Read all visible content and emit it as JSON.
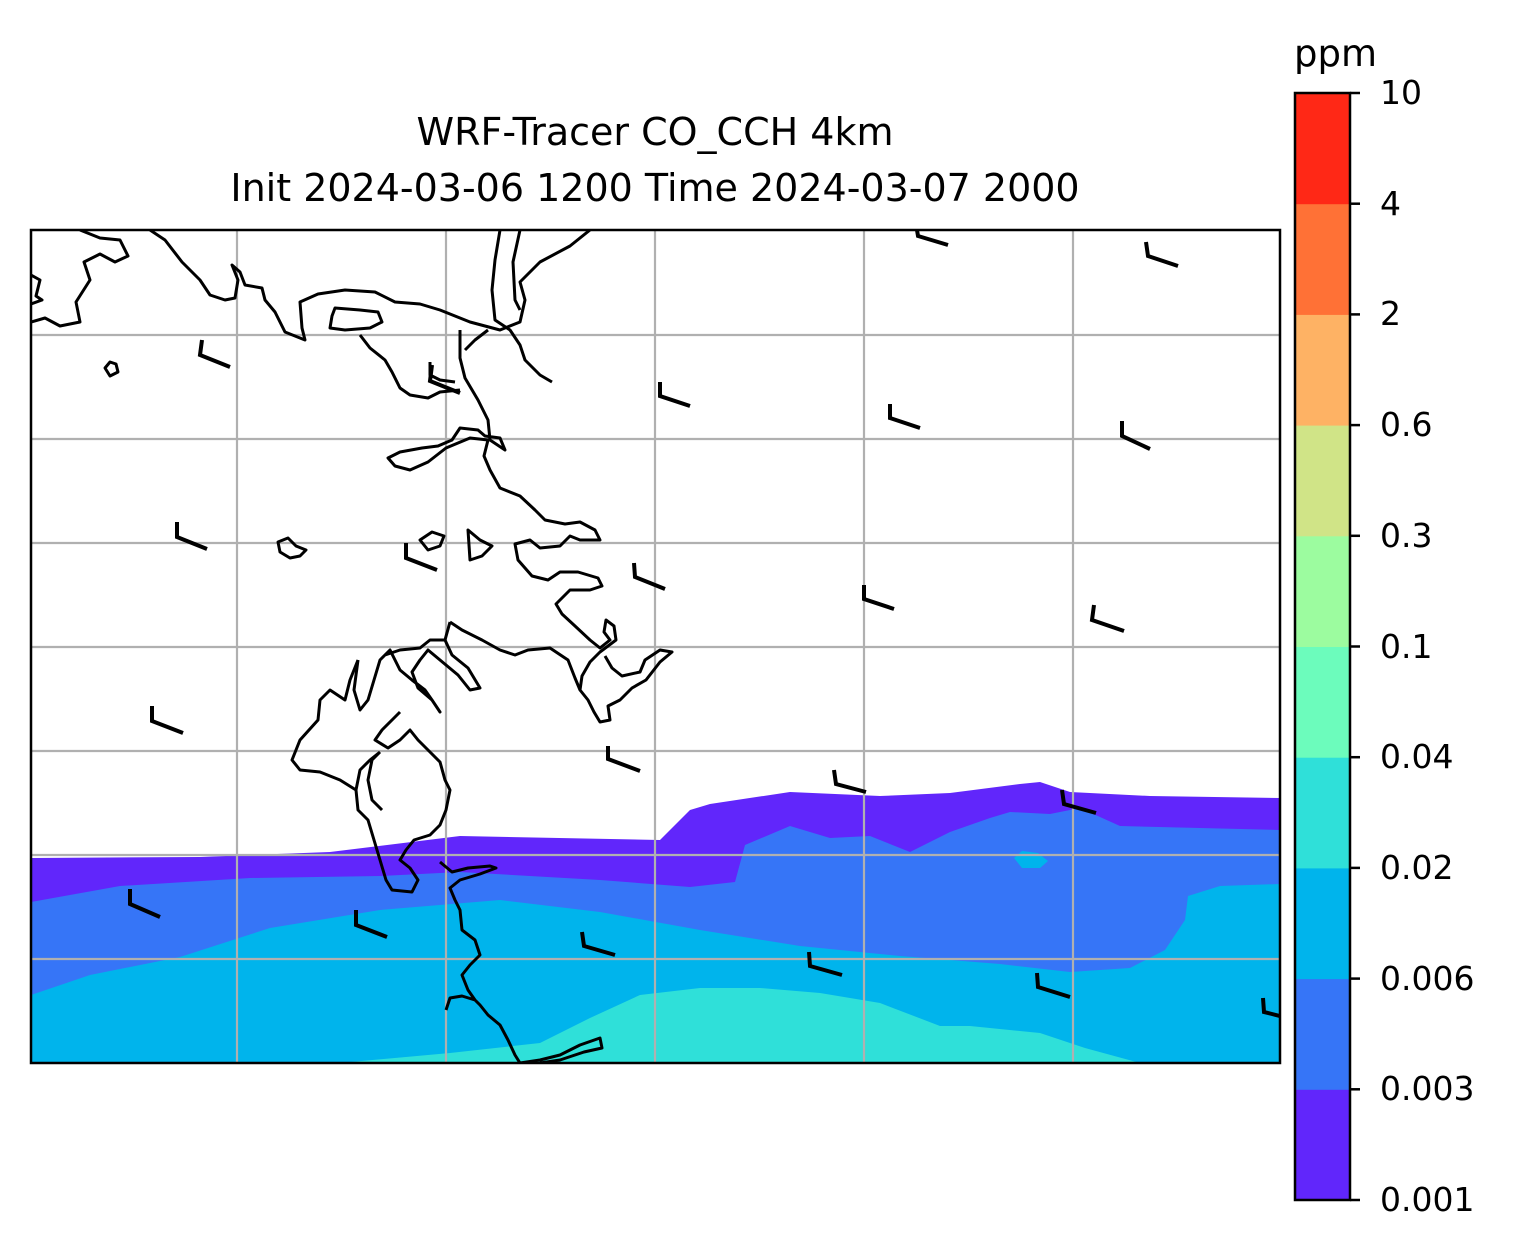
{
  "title": "WRF-Tracer CO_CCH 4km",
  "subtitle": "Init 2024-03-06 1200 Time 2024-03-07 2000",
  "colorbar": {
    "unit": "ppm",
    "levels": [
      "0.001",
      "0.003",
      "0.006",
      "0.02",
      "0.04",
      "0.1",
      "0.3",
      "0.6",
      "2",
      "4",
      "10"
    ],
    "colors": [
      "#6126fb",
      "#3675f7",
      "#00b4ec",
      "#2fe0d9",
      "#6cfcbc",
      "#9cfc9f",
      "#d0e487",
      "#feb264",
      "#ff7136",
      "#ff2816"
    ]
  },
  "map": {
    "background": "#ffffff",
    "coastline_color": "#000000",
    "gridlines": true,
    "gridline_color": "#b0b0b0",
    "wind_barbs": true
  }
}
